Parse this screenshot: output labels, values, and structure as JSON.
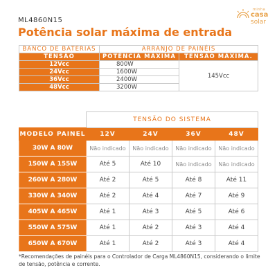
{
  "header": {
    "model": "ML4860N15",
    "title": "Potência solar máxima de entrada"
  },
  "logo": {
    "top_text": "minha",
    "line1": "casa",
    "line2": "solar",
    "color": "#e8a24a"
  },
  "top_table": {
    "group_left": "BANCO DE BATERIAS",
    "group_right": "ARRANJO DE PAINÉIS",
    "col_voltage": "TENSÃO",
    "col_power": "POTÊNCIA MÁXIMA",
    "col_max_voltage": "TENSÃO MÁXIMA.",
    "rows": [
      {
        "voltage": "12Vcc",
        "power": "800W"
      },
      {
        "voltage": "24Vcc",
        "power": "1600W"
      },
      {
        "voltage": "36Vcc",
        "power": "2400W"
      },
      {
        "voltage": "48Vcc",
        "power": "3200W"
      }
    ],
    "max_voltage": "145Vcc"
  },
  "bottom_table": {
    "system_voltage": "TENSÃO DO SISTEMA",
    "model_header": "MODELO PAINEL",
    "columns": [
      "12V",
      "24V",
      "36V",
      "48V"
    ],
    "rows": [
      {
        "model": "30W A 80W",
        "values": [
          "Não indicado",
          "Não indicado",
          "Não indicado",
          "Não indicado"
        ]
      },
      {
        "model": "150W A 155W",
        "values": [
          "Até 5",
          "Até 10",
          "Não indicado",
          "Não indicado"
        ]
      },
      {
        "model": "260W A 280W",
        "values": [
          "Até 2",
          "Até 5",
          "Até 8",
          "Até 11"
        ]
      },
      {
        "model": "330W A 340W",
        "values": [
          "Até 2",
          "Até 4",
          "Até 7",
          "Até 9"
        ]
      },
      {
        "model": "405W A 465W",
        "values": [
          "Até 1",
          "Até 3",
          "Até 5",
          "Até 6"
        ]
      },
      {
        "model": "550W A 575W",
        "values": [
          "Até 1",
          "Até 2",
          "Até 3",
          "Até 4"
        ]
      },
      {
        "model": "650W A 670W",
        "values": [
          "Até 1",
          "Até 2",
          "Até 3",
          "Até 4"
        ]
      }
    ]
  },
  "footnote": "*Recomendações de painéis para o Controlador de Carga ML4860N15, considerando o limite de tensão, potência e corrente.",
  "colors": {
    "accent": "#e8751a",
    "border": "#c9c9c9",
    "text": "#444444"
  }
}
